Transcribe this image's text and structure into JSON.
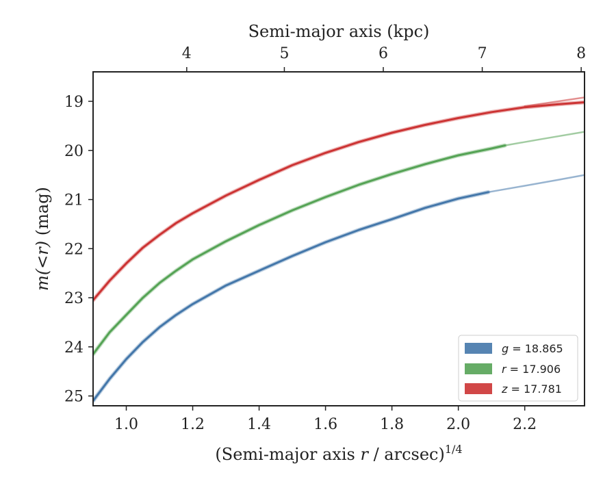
{
  "chart_data": {
    "type": "line",
    "xlabel_prefix": "(Semi-major axis ",
    "xlabel_var": "r",
    "xlabel_suffix": " / arcsec)",
    "xlabel_sup": "1/4",
    "ylabel_var": "m(<r)",
    "ylabel_suffix": " (mag)",
    "top_xlabel": "Semi-major axis (kpc)",
    "xlim": [
      0.9,
      2.38
    ],
    "ylim": [
      25.2,
      18.4
    ],
    "y_inverted": true,
    "x_ticks": [
      1.0,
      1.2,
      1.4,
      1.6,
      1.8,
      2.0,
      2.2
    ],
    "x_tick_labels": [
      "1.0",
      "1.2",
      "1.4",
      "1.6",
      "1.8",
      "2.0",
      "2.2"
    ],
    "y_ticks": [
      19,
      20,
      21,
      22,
      23,
      24,
      25
    ],
    "y_tick_labels": [
      "19",
      "20",
      "21",
      "22",
      "23",
      "24",
      "25"
    ],
    "top_ticks": [
      {
        "x": 1.182,
        "label": "4"
      },
      {
        "x": 1.476,
        "label": "5"
      },
      {
        "x": 1.774,
        "label": "6"
      },
      {
        "x": 2.072,
        "label": "7"
      },
      {
        "x": 2.37,
        "label": "8"
      }
    ],
    "legend_position": "lower-right",
    "series": [
      {
        "name": "g = 18.865",
        "band": "g",
        "value": "18.865",
        "color": "#4477aa",
        "x": [
          0.9,
          0.95,
          1.0,
          1.05,
          1.1,
          1.15,
          1.2,
          1.3,
          1.4,
          1.5,
          1.6,
          1.7,
          1.8,
          1.9,
          2.0,
          2.09
        ],
        "y": [
          25.1,
          24.65,
          24.25,
          23.9,
          23.6,
          23.35,
          23.13,
          22.75,
          22.45,
          22.15,
          21.87,
          21.62,
          21.4,
          21.17,
          20.98,
          20.85
        ],
        "ext_x": [
          2.09,
          2.2,
          2.3,
          2.38
        ],
        "ext_y": [
          20.85,
          20.72,
          20.6,
          20.5
        ]
      },
      {
        "name": "r = 17.906",
        "band": "r",
        "value": "17.906",
        "color": "#55a355",
        "x": [
          0.9,
          0.95,
          1.0,
          1.05,
          1.1,
          1.15,
          1.2,
          1.3,
          1.4,
          1.5,
          1.6,
          1.7,
          1.8,
          1.9,
          2.0,
          2.1,
          2.14
        ],
        "y": [
          24.15,
          23.7,
          23.35,
          23.0,
          22.7,
          22.45,
          22.22,
          21.85,
          21.52,
          21.22,
          20.95,
          20.7,
          20.48,
          20.28,
          20.1,
          19.96,
          19.9
        ],
        "ext_x": [
          2.14,
          2.25,
          2.38
        ],
        "ext_y": [
          19.9,
          19.77,
          19.62
        ]
      },
      {
        "name": "z = 17.781",
        "band": "z",
        "value": "17.781",
        "color": "#cc3333",
        "x": [
          0.9,
          0.95,
          1.0,
          1.05,
          1.1,
          1.15,
          1.2,
          1.3,
          1.4,
          1.5,
          1.6,
          1.7,
          1.8,
          1.9,
          2.0,
          2.1,
          2.2,
          2.3,
          2.38
        ],
        "y": [
          23.05,
          22.65,
          22.3,
          21.98,
          21.72,
          21.48,
          21.28,
          20.92,
          20.6,
          20.3,
          20.05,
          19.83,
          19.64,
          19.48,
          19.34,
          19.22,
          19.12,
          19.06,
          19.02
        ],
        "ext_x": [
          2.2,
          2.3,
          2.38
        ],
        "ext_y": [
          19.1,
          19.0,
          18.92
        ]
      }
    ]
  }
}
